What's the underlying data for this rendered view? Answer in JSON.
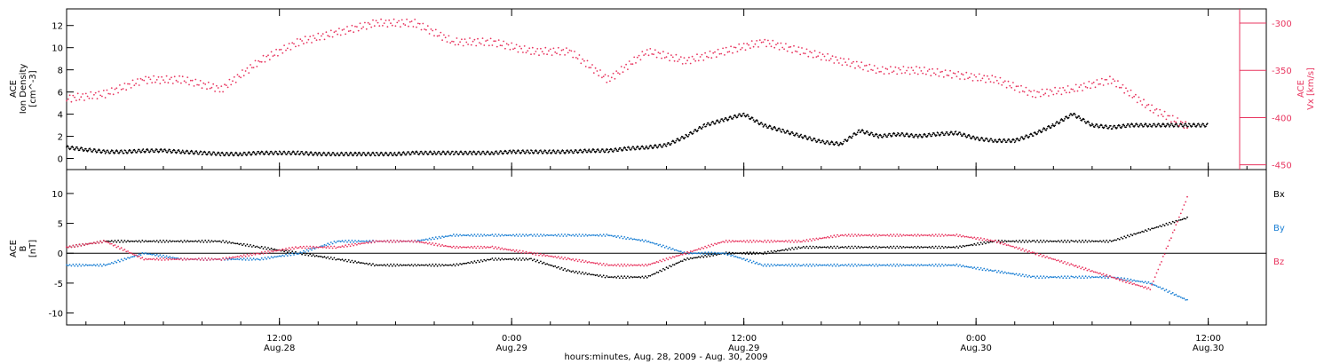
{
  "colors": {
    "black": "#000000",
    "blue": "#1a7fd4",
    "pink": "#e8355f"
  },
  "time_axis": {
    "major_ticks": [
      {
        "time": "12:00",
        "date": "Aug.28",
        "hours": 12
      },
      {
        "time": "0:00",
        "date": "Aug.29",
        "hours": 24
      },
      {
        "time": "12:00",
        "date": "Aug.29",
        "hours": 36
      },
      {
        "time": "0:00",
        "date": "Aug.30",
        "hours": 48
      },
      {
        "time": "12:00",
        "date": "Aug.30",
        "hours": 60
      }
    ],
    "xlabel": "hours:minutes, Aug. 28, 2009 - Aug. 30, 2009"
  },
  "chart_data": [
    {
      "type": "scatter",
      "panel": "top",
      "ylabel_lines": [
        "ACE",
        "Ion Density",
        "[cm^-3]"
      ],
      "ylim": [
        -1,
        13.5
      ],
      "yticks": [
        0,
        2,
        4,
        6,
        8,
        10,
        12
      ],
      "y2label_lines": [
        "ACE",
        "Vx [km/s]"
      ],
      "y2lim": [
        -455,
        -285
      ],
      "y2ticks": [
        -300,
        -350,
        -400,
        -450
      ],
      "xlim_hours": [
        1,
        63
      ],
      "series": [
        {
          "color": "#000000",
          "x": [
            1,
            2,
            3,
            4,
            5,
            6,
            7,
            8,
            9,
            10,
            11,
            12,
            13,
            14,
            15,
            16,
            17,
            18,
            19,
            20,
            21,
            22,
            23,
            24,
            25,
            26,
            27,
            28,
            29,
            30,
            31,
            32,
            33,
            34,
            35,
            36,
            37,
            38,
            39,
            40,
            41,
            42,
            43,
            44,
            45,
            46,
            47,
            48,
            49,
            50,
            51,
            52,
            53,
            54,
            55,
            56,
            57,
            58,
            59,
            60,
            61,
            62,
            63
          ],
          "y": [
            1.0,
            0.8,
            0.6,
            0.6,
            0.7,
            0.7,
            0.6,
            0.5,
            0.4,
            0.4,
            0.5,
            0.5,
            0.5,
            0.4,
            0.4,
            0.4,
            0.4,
            0.4,
            0.5,
            0.5,
            0.5,
            0.5,
            0.5,
            0.6,
            0.6,
            0.6,
            0.6,
            0.7,
            0.7,
            0.9,
            1.0,
            1.2,
            2.0,
            3.0,
            3.5,
            4.0,
            3.0,
            2.5,
            2.0,
            1.5,
            1.3,
            2.5,
            2.0,
            2.2,
            2.0,
            2.2,
            2.3,
            1.8,
            1.6,
            1.6,
            2.2,
            3.0,
            4.0,
            3.0,
            2.8,
            3.0,
            3.0,
            3.0,
            3.0,
            3.0,
            null,
            null,
            null
          ]
        }
      ]
    },
    {
      "type": "scatter",
      "panel": "bottom",
      "ylabel_lines": [
        "ACE",
        "B",
        "[nT]"
      ],
      "ylim": [
        -12,
        14
      ],
      "yticks": [
        -10,
        -5,
        0,
        5,
        10
      ],
      "legend": [
        "Bx",
        "By",
        "Bz"
      ],
      "legend_position": "right",
      "xlim_hours": [
        1,
        63
      ],
      "series": [
        {
          "name": "Bx",
          "color": "#000000",
          "x": [
            1,
            3,
            5,
            7,
            9,
            11,
            13,
            15,
            17,
            19,
            21,
            23,
            25,
            27,
            29,
            31,
            33,
            35,
            37,
            39,
            41,
            43,
            45,
            47,
            49,
            51,
            53,
            55,
            57,
            59
          ],
          "y": [
            1,
            2,
            2,
            2,
            2,
            1,
            0,
            -1,
            -2,
            -2,
            -2,
            -1,
            -1,
            -3,
            -4,
            -4,
            -1,
            0,
            0,
            1,
            1,
            1,
            1,
            1,
            2,
            2,
            2,
            2,
            4,
            6
          ]
        },
        {
          "name": "By",
          "color": "#1a7fd4",
          "x": [
            1,
            3,
            5,
            7,
            9,
            11,
            13,
            15,
            17,
            19,
            21,
            23,
            25,
            27,
            29,
            31,
            33,
            35,
            37,
            39,
            41,
            43,
            45,
            47,
            49,
            51,
            53,
            55,
            57,
            59
          ],
          "y": [
            -2,
            -2,
            0,
            -1,
            -1,
            -1,
            0,
            2,
            2,
            2,
            3,
            3,
            3,
            3,
            3,
            2,
            0,
            0,
            -2,
            -2,
            -2,
            -2,
            -2,
            -2,
            -3,
            -4,
            -4,
            -4,
            -5,
            -8
          ]
        },
        {
          "name": "Bz",
          "color": "#e8355f",
          "x": [
            1,
            3,
            5,
            7,
            9,
            11,
            13,
            15,
            17,
            19,
            21,
            23,
            25,
            27,
            29,
            31,
            33,
            35,
            37,
            39,
            41,
            43,
            45,
            47,
            49,
            51,
            53,
            55,
            57,
            59
          ],
          "y": [
            1,
            2,
            -1,
            -1,
            -1,
            0,
            1,
            1,
            2,
            2,
            1,
            1,
            0,
            -1,
            -2,
            -2,
            0,
            2,
            2,
            2,
            3,
            3,
            3,
            3,
            2,
            0,
            -2,
            -4,
            -6,
            10
          ]
        }
      ]
    }
  ]
}
